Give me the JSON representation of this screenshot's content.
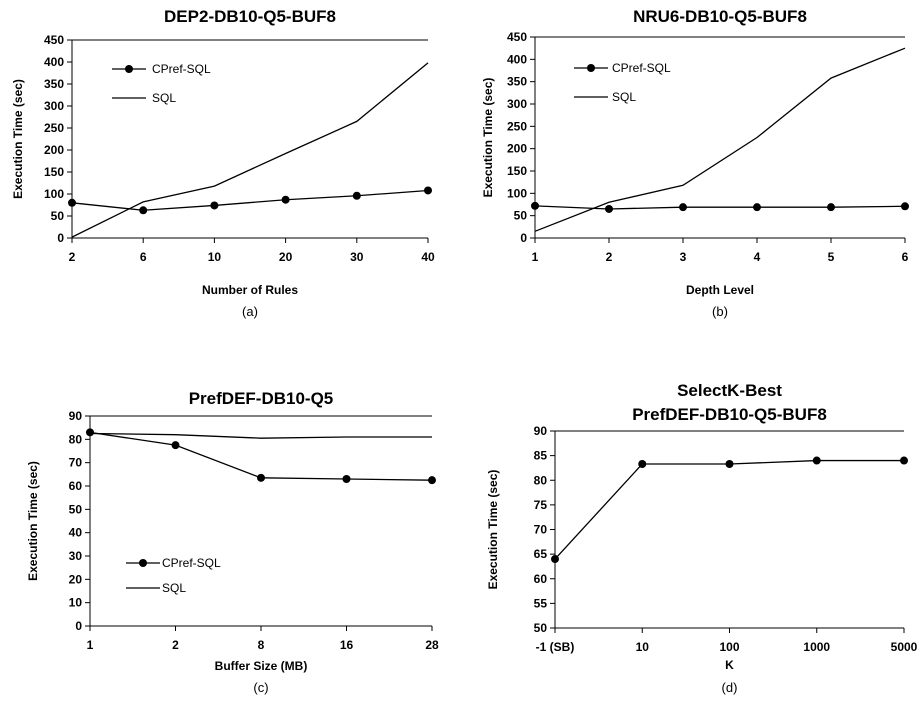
{
  "chart_data": [
    {
      "type": "line",
      "title": "DEP2-DB10-Q5-BUF8",
      "subtitle": "",
      "xlabel": "Number of Rules",
      "ylabel": "Execution Time (sec)",
      "caption": "(a)",
      "categories": [
        "2",
        "6",
        "10",
        "20",
        "30",
        "40"
      ],
      "ylim": [
        0,
        450
      ],
      "yticks": [
        0,
        50,
        100,
        150,
        200,
        250,
        300,
        350,
        400,
        450
      ],
      "grid": false,
      "legend": "top-left",
      "series": [
        {
          "name": "CPref-SQL",
          "marker": "circle",
          "values": [
            80,
            63,
            74,
            87,
            96,
            108
          ]
        },
        {
          "name": "SQL",
          "marker": "none",
          "values": [
            2,
            82,
            118,
            192,
            265,
            398
          ]
        }
      ]
    },
    {
      "type": "line",
      "title": "NRU6-DB10-Q5-BUF8",
      "subtitle": "",
      "xlabel": "Depth Level",
      "ylabel": "Execution Time (sec)",
      "caption": "(b)",
      "categories": [
        "1",
        "2",
        "3",
        "4",
        "5",
        "6"
      ],
      "ylim": [
        0,
        450
      ],
      "yticks": [
        0,
        50,
        100,
        150,
        200,
        250,
        300,
        350,
        400,
        450
      ],
      "grid": false,
      "legend": "top-left",
      "series": [
        {
          "name": "CPref-SQL",
          "marker": "circle",
          "values": [
            72,
            65,
            69,
            69,
            69,
            71
          ]
        },
        {
          "name": "SQL",
          "marker": "none",
          "values": [
            15,
            80,
            118,
            225,
            358,
            425
          ]
        }
      ]
    },
    {
      "type": "line",
      "title": "PrefDEF-DB10-Q5",
      "subtitle": "",
      "xlabel": "Buffer Size (MB)",
      "ylabel": "Execution Time (sec)",
      "caption": "(c)",
      "categories": [
        "1",
        "2",
        "8",
        "16",
        "28"
      ],
      "ylim": [
        0,
        90
      ],
      "yticks": [
        0,
        10,
        20,
        30,
        40,
        50,
        60,
        70,
        80,
        90
      ],
      "grid": false,
      "legend": "bottom-left",
      "series": [
        {
          "name": "CPref-SQL",
          "marker": "circle",
          "values": [
            83,
            77.5,
            63.5,
            63,
            62.5
          ]
        },
        {
          "name": "SQL",
          "marker": "none",
          "values": [
            82.5,
            82,
            80.5,
            81,
            81
          ]
        }
      ]
    },
    {
      "type": "line",
      "title": "SelectK-Best",
      "subtitle": "PrefDEF-DB10-Q5-BUF8",
      "xlabel": "K",
      "ylabel": "Execution Time (sec)",
      "caption": "(d)",
      "categories": [
        "-1 (SB)",
        "10",
        "100",
        "1000",
        "5000"
      ],
      "ylim": [
        50,
        90
      ],
      "yticks": [
        50,
        55,
        60,
        65,
        70,
        75,
        80,
        85,
        90
      ],
      "grid": false,
      "legend": "none",
      "series": [
        {
          "name": "",
          "marker": "circle",
          "values": [
            64,
            83.3,
            83.3,
            84,
            84
          ]
        }
      ]
    }
  ]
}
